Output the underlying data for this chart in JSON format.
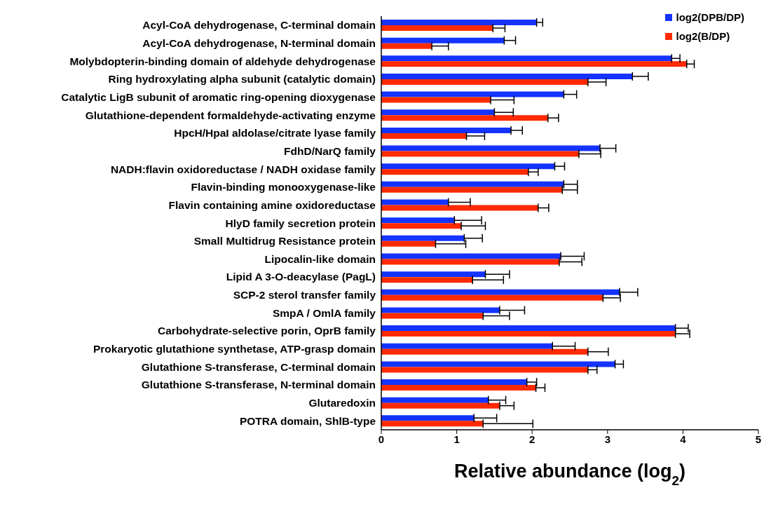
{
  "chart_data": {
    "type": "bar",
    "orientation": "horizontal",
    "xlabel": "Relative abundance (log$_{2}$)",
    "categories": [
      "Acyl-CoA dehydrogenase, C-terminal domain",
      "Acyl-CoA dehydrogenase, N-terminal domain",
      "Molybdopterin-binding domain of aldehyde dehydrogenase",
      "Ring hydroxylating alpha subunit (catalytic domain)",
      "Catalytic LigB subunit of aromatic ring-opening dioxygenase",
      "Glutathione-dependent formaldehyde-activating enzyme",
      "HpcH/HpaI aldolase/citrate lyase family",
      "FdhD/NarQ family",
      "NADH:flavin oxidoreductase / NADH oxidase family",
      "Flavin-binding monooxygenase-like",
      "Flavin containing amine oxidoreductase",
      "HlyD family secretion protein",
      "Small Multidrug Resistance protein",
      "Lipocalin-like domain",
      "Lipid A 3-O-deacylase (PagL)",
      "SCP-2 sterol transfer family",
      "SmpA / OmlA family",
      "Carbohydrate-selective porin, OprB family",
      "Prokaryotic glutathione synthetase, ATP-grasp domain",
      "Glutathione S-transferase, C-terminal domain",
      "Glutathione S-transferase, N-terminal domain",
      "Glutaredoxin",
      "POTRA domain, ShlB-type"
    ],
    "series": [
      {
        "name": "log2(DPB/DP)",
        "color": "#1433ff",
        "values": [
          2.06,
          1.63,
          3.85,
          3.33,
          2.42,
          1.5,
          1.72,
          2.9,
          2.3,
          2.42,
          0.89,
          0.97,
          1.1,
          2.38,
          1.38,
          3.16,
          1.57,
          3.9,
          2.27,
          3.1,
          1.93,
          1.42,
          1.23
        ],
        "errors": [
          [
            2.06,
            2.14
          ],
          [
            1.63,
            1.78
          ],
          [
            3.85,
            3.96
          ],
          [
            3.33,
            3.54
          ],
          [
            2.42,
            2.59
          ],
          [
            1.5,
            1.75
          ],
          [
            1.72,
            1.87
          ],
          [
            2.9,
            3.11
          ],
          [
            2.3,
            2.43
          ],
          [
            2.42,
            2.6
          ],
          [
            0.89,
            1.18
          ],
          [
            0.97,
            1.33
          ],
          [
            1.1,
            1.34
          ],
          [
            2.38,
            2.69
          ],
          [
            1.38,
            1.7
          ],
          [
            3.16,
            3.4
          ],
          [
            1.57,
            1.9
          ],
          [
            3.9,
            4.07
          ],
          [
            2.27,
            2.57
          ],
          [
            3.1,
            3.21
          ],
          [
            1.93,
            2.06
          ],
          [
            1.42,
            1.65
          ],
          [
            1.23,
            1.53
          ]
        ]
      },
      {
        "name": "log2(B/DP)",
        "color": "#ff2a00",
        "values": [
          1.48,
          0.67,
          4.05,
          2.74,
          1.45,
          2.21,
          1.13,
          2.62,
          1.95,
          2.4,
          2.08,
          1.06,
          0.72,
          2.36,
          1.21,
          2.94,
          1.35,
          3.9,
          2.74,
          2.74,
          2.05,
          1.57,
          1.35
        ],
        "errors": [
          [
            1.48,
            1.64
          ],
          [
            0.67,
            0.89
          ],
          [
            4.05,
            4.15
          ],
          [
            2.74,
            2.98
          ],
          [
            1.45,
            1.76
          ],
          [
            2.21,
            2.35
          ],
          [
            1.13,
            1.37
          ],
          [
            2.62,
            2.91
          ],
          [
            1.95,
            2.08
          ],
          [
            2.4,
            2.6
          ],
          [
            2.08,
            2.22
          ],
          [
            1.06,
            1.38
          ],
          [
            0.72,
            1.12
          ],
          [
            2.36,
            2.66
          ],
          [
            1.21,
            1.62
          ],
          [
            2.94,
            3.17
          ],
          [
            1.35,
            1.7
          ],
          [
            3.9,
            4.09
          ],
          [
            2.74,
            3.01
          ],
          [
            2.74,
            2.86
          ],
          [
            2.05,
            2.17
          ],
          [
            1.57,
            1.76
          ],
          [
            1.35,
            2.01
          ]
        ]
      }
    ],
    "xlim": [
      0,
      5
    ],
    "xticks": [
      0,
      1,
      2,
      3,
      4,
      5
    ],
    "grid": false,
    "legend": "top right"
  }
}
